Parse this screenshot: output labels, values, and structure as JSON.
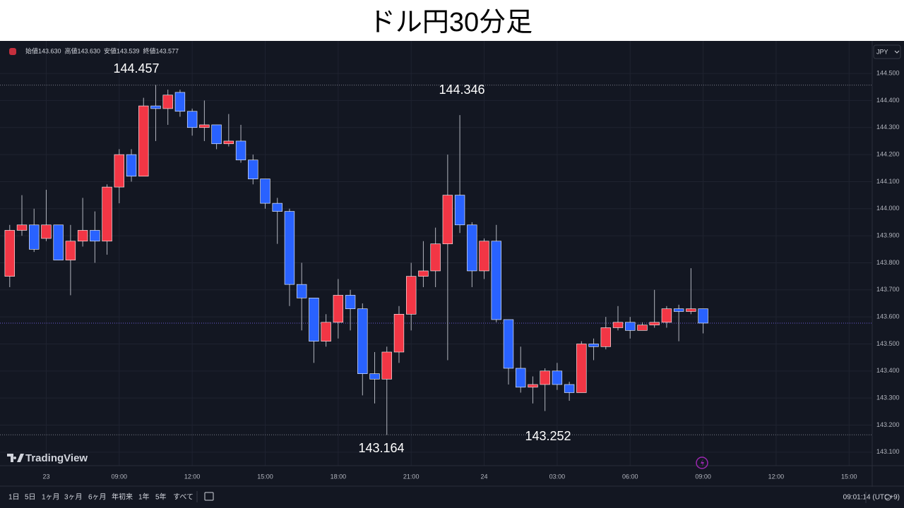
{
  "chart_data": {
    "type": "candlestick",
    "title": "ドル円30分足",
    "x": [
      0,
      1,
      2,
      3,
      4,
      5,
      6,
      7,
      8,
      9,
      10,
      11,
      12,
      13,
      14,
      15,
      16,
      17,
      18,
      19,
      20,
      21,
      22,
      23,
      24,
      25,
      26,
      27,
      28,
      29,
      30,
      31,
      32,
      33,
      34,
      35,
      36,
      37,
      38,
      39,
      40,
      41,
      42,
      43,
      44,
      45,
      46,
      47,
      48,
      49,
      50,
      51,
      52,
      53,
      54,
      55,
      56,
      57
    ],
    "open": [
      143.75,
      143.92,
      143.94,
      143.89,
      143.94,
      143.81,
      143.88,
      143.92,
      143.88,
      144.08,
      144.2,
      144.12,
      144.38,
      144.37,
      144.43,
      144.36,
      144.3,
      144.31,
      144.24,
      144.25,
      144.18,
      144.11,
      144.02,
      143.99,
      143.72,
      143.67,
      143.51,
      143.58,
      143.68,
      143.63,
      143.39,
      143.37,
      143.47,
      143.61,
      143.75,
      143.77,
      143.87,
      144.05,
      143.94,
      143.77,
      143.88,
      143.59,
      143.41,
      143.34,
      143.35,
      143.4,
      143.35,
      143.32,
      143.5,
      143.49,
      143.56,
      143.58,
      143.55,
      143.57,
      143.58,
      143.63,
      143.62,
      143.63
    ],
    "high": [
      143.94,
      144.05,
      144.0,
      144.07,
      143.94,
      143.94,
      144.04,
      143.99,
      144.09,
      144.22,
      144.22,
      144.41,
      144.457,
      144.44,
      144.44,
      144.37,
      144.4,
      144.31,
      144.35,
      144.31,
      144.2,
      144.11,
      144.04,
      144.0,
      143.8,
      143.67,
      143.61,
      143.74,
      143.7,
      143.65,
      143.47,
      143.49,
      143.64,
      143.8,
      143.88,
      143.93,
      144.2,
      144.346,
      143.95,
      143.89,
      143.94,
      143.59,
      143.49,
      143.38,
      143.41,
      143.43,
      143.36,
      143.51,
      143.52,
      143.6,
      143.64,
      143.6,
      143.58,
      143.7,
      143.64,
      143.645,
      143.78,
      143.63
    ],
    "low": [
      143.71,
      143.9,
      143.84,
      143.88,
      143.81,
      143.68,
      143.86,
      143.8,
      143.83,
      144.02,
      144.1,
      144.12,
      144.25,
      144.31,
      144.34,
      144.27,
      144.25,
      144.22,
      144.23,
      144.17,
      144.09,
      144.0,
      143.87,
      143.64,
      143.55,
      143.43,
      143.49,
      143.52,
      143.55,
      143.31,
      143.28,
      143.164,
      143.43,
      143.55,
      143.71,
      143.71,
      143.44,
      143.91,
      143.71,
      143.74,
      143.58,
      143.35,
      143.32,
      143.28,
      143.252,
      143.33,
      143.29,
      143.32,
      143.44,
      143.48,
      143.55,
      143.52,
      143.55,
      143.56,
      143.56,
      143.51,
      143.61,
      143.539
    ],
    "close": [
      143.92,
      143.94,
      143.85,
      143.94,
      143.81,
      143.88,
      143.92,
      143.88,
      144.08,
      144.2,
      144.12,
      144.38,
      144.37,
      144.42,
      144.36,
      144.3,
      144.31,
      144.24,
      144.25,
      144.18,
      144.11,
      144.02,
      143.99,
      143.72,
      143.67,
      143.51,
      143.58,
      143.68,
      143.63,
      143.39,
      143.37,
      143.47,
      143.61,
      143.75,
      143.77,
      143.87,
      144.05,
      143.94,
      143.77,
      143.88,
      143.59,
      143.41,
      143.34,
      143.35,
      143.4,
      143.35,
      143.32,
      143.5,
      143.49,
      143.56,
      143.58,
      143.55,
      143.57,
      143.58,
      143.63,
      143.62,
      143.63,
      143.577
    ],
    "up_color": "#f23645",
    "down_color": "#2962ff",
    "ylim": [
      143.05,
      144.615
    ],
    "yticks": [
      {
        "value": 144.5,
        "label": "144.500"
      },
      {
        "value": 144.4,
        "label": "144.400"
      },
      {
        "value": 144.3,
        "label": "144.300"
      },
      {
        "value": 144.2,
        "label": "144.200"
      },
      {
        "value": 144.1,
        "label": "144.100"
      },
      {
        "value": 144.0,
        "label": "144.000"
      },
      {
        "value": 143.9,
        "label": "143.900"
      },
      {
        "value": 143.8,
        "label": "143.800"
      },
      {
        "value": 143.7,
        "label": "143.700"
      },
      {
        "value": 143.6,
        "label": "143.600"
      },
      {
        "value": 143.5,
        "label": "143.500"
      },
      {
        "value": 143.4,
        "label": "143.400"
      },
      {
        "value": 143.3,
        "label": "143.300"
      },
      {
        "value": 143.2,
        "label": "143.200"
      },
      {
        "value": 143.1,
        "label": "143.100"
      }
    ],
    "xlim": [
      -0.8,
      70.9
    ],
    "xticks": [
      {
        "value": 3,
        "label": "23"
      },
      {
        "value": 9,
        "label": "09:00"
      },
      {
        "value": 15,
        "label": "12:00"
      },
      {
        "value": 21,
        "label": "15:00"
      },
      {
        "value": 27,
        "label": "18:00"
      },
      {
        "value": 33,
        "label": "21:00"
      },
      {
        "value": 39,
        "label": "24"
      },
      {
        "value": 45,
        "label": "03:00"
      },
      {
        "value": 51,
        "label": "06:00"
      },
      {
        "value": 57,
        "label": "09:00"
      },
      {
        "value": 63,
        "label": "12:00"
      },
      {
        "value": 69,
        "label": "15:00"
      }
    ],
    "grid": true,
    "annotations": [
      "144.457",
      "144.346",
      "143.164",
      "143.252"
    ],
    "currency": "JPY",
    "ohlc_legend": [
      "始値143.630",
      "高値143.630",
      "安値143.539",
      "終値143.577"
    ]
  },
  "ui": {
    "brand": "TradingView",
    "ranges": [
      "1日",
      "5日",
      "1ヶ月",
      "3ヶ月",
      "6ヶ月",
      "年初来",
      "1年",
      "5年",
      "すべて"
    ],
    "clock": "09:01:14 (UTC+9)"
  }
}
